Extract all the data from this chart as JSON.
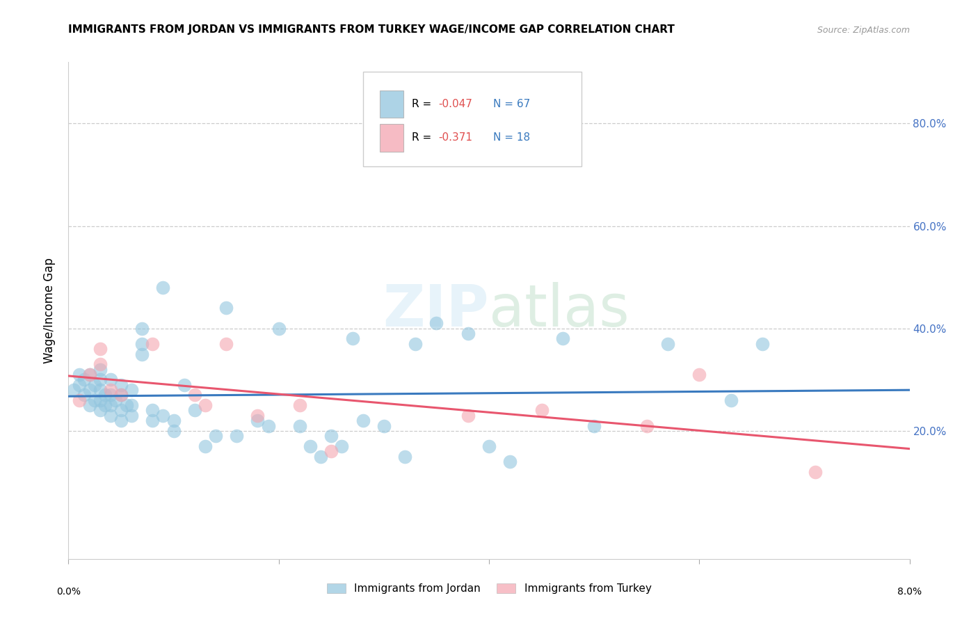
{
  "title": "IMMIGRANTS FROM JORDAN VS IMMIGRANTS FROM TURKEY WAGE/INCOME GAP CORRELATION CHART",
  "source": "Source: ZipAtlas.com",
  "ylabel": "Wage/Income Gap",
  "xlim": [
    0.0,
    0.08
  ],
  "ylim": [
    -0.05,
    0.92
  ],
  "ytick_labels": [
    "20.0%",
    "40.0%",
    "60.0%",
    "80.0%"
  ],
  "ytick_values": [
    0.2,
    0.4,
    0.6,
    0.8
  ],
  "xtick_values": [
    0.0,
    0.02,
    0.04,
    0.06,
    0.08
  ],
  "jordan_R": -0.047,
  "jordan_N": 67,
  "turkey_R": -0.371,
  "turkey_N": 18,
  "jordan_color": "#92c5de",
  "turkey_color": "#f4a5b0",
  "jordan_line_color": "#3a7abf",
  "turkey_line_color": "#e8566e",
  "jordan_x": [
    0.0005,
    0.001,
    0.001,
    0.0015,
    0.0015,
    0.002,
    0.002,
    0.002,
    0.0025,
    0.0025,
    0.003,
    0.003,
    0.003,
    0.003,
    0.003,
    0.0035,
    0.0035,
    0.004,
    0.004,
    0.004,
    0.004,
    0.0045,
    0.005,
    0.005,
    0.005,
    0.005,
    0.0055,
    0.006,
    0.006,
    0.006,
    0.007,
    0.007,
    0.007,
    0.008,
    0.008,
    0.009,
    0.009,
    0.01,
    0.01,
    0.011,
    0.012,
    0.013,
    0.014,
    0.015,
    0.016,
    0.018,
    0.019,
    0.02,
    0.022,
    0.023,
    0.024,
    0.025,
    0.026,
    0.027,
    0.028,
    0.03,
    0.032,
    0.033,
    0.035,
    0.038,
    0.04,
    0.042,
    0.047,
    0.05,
    0.057,
    0.063,
    0.066
  ],
  "jordan_y": [
    0.28,
    0.29,
    0.31,
    0.27,
    0.3,
    0.25,
    0.28,
    0.31,
    0.26,
    0.29,
    0.24,
    0.26,
    0.28,
    0.3,
    0.32,
    0.25,
    0.27,
    0.23,
    0.25,
    0.27,
    0.3,
    0.26,
    0.22,
    0.24,
    0.27,
    0.29,
    0.25,
    0.23,
    0.25,
    0.28,
    0.35,
    0.37,
    0.4,
    0.22,
    0.24,
    0.23,
    0.48,
    0.2,
    0.22,
    0.29,
    0.24,
    0.17,
    0.19,
    0.44,
    0.19,
    0.22,
    0.21,
    0.4,
    0.21,
    0.17,
    0.15,
    0.19,
    0.17,
    0.38,
    0.22,
    0.21,
    0.15,
    0.37,
    0.41,
    0.39,
    0.17,
    0.14,
    0.38,
    0.21,
    0.37,
    0.26,
    0.37
  ],
  "turkey_x": [
    0.001,
    0.002,
    0.003,
    0.003,
    0.004,
    0.005,
    0.008,
    0.012,
    0.013,
    0.015,
    0.018,
    0.022,
    0.025,
    0.038,
    0.045,
    0.055,
    0.06,
    0.071
  ],
  "turkey_y": [
    0.26,
    0.31,
    0.33,
    0.36,
    0.28,
    0.27,
    0.37,
    0.27,
    0.25,
    0.37,
    0.23,
    0.25,
    0.16,
    0.23,
    0.24,
    0.21,
    0.31,
    0.12
  ]
}
